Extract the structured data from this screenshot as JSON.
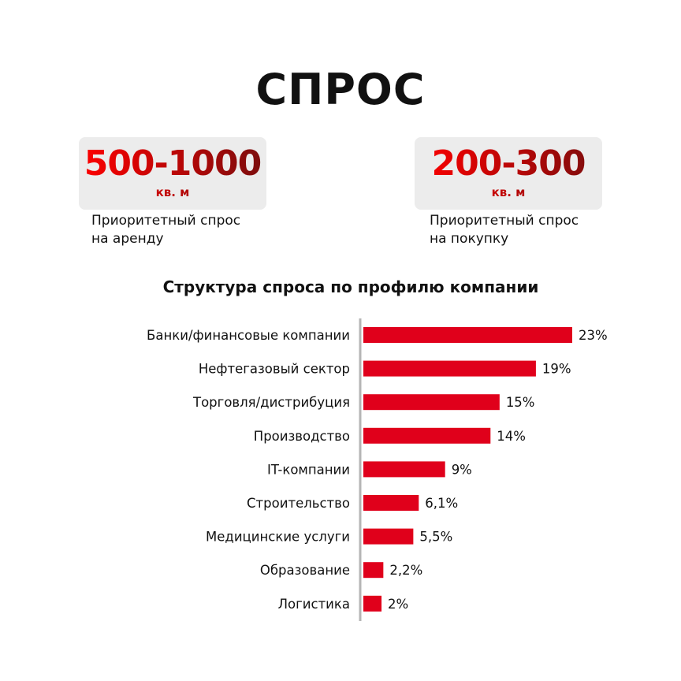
{
  "title": "СПРОС",
  "stats": [
    {
      "value": "500-1000",
      "unit": "кв. м",
      "caption": "Приоритетный спрос\nна аренду"
    },
    {
      "value": "200-300",
      "unit": "кв. м",
      "caption": "Приоритетный спрос\nна покупку"
    }
  ],
  "colors": {
    "bar": "#e0001b",
    "value_gradient_start": "#ff0000",
    "value_gradient_end": "#7a0d0d",
    "axis": "#b5b5b5",
    "box": "#ececec"
  },
  "chart_data": {
    "type": "bar",
    "orientation": "horizontal",
    "title": "Структура спроса по профилю компании",
    "categories": [
      "Банки/финансовые компании",
      "Нефтегазовый сектор",
      "Торговля/дистрибуция",
      "Производство",
      "IT-компании",
      "Строительство",
      "Медицинские услуги",
      "Образование",
      "Логистика"
    ],
    "values": [
      23,
      19,
      15,
      14,
      9,
      6.1,
      5.5,
      2.2,
      2
    ],
    "value_labels": [
      "23%",
      "19%",
      "15%",
      "14%",
      "9%",
      "6,1%",
      "5,5%",
      "2,2%",
      "2%"
    ],
    "unit": "%",
    "xlim": [
      0,
      23
    ],
    "grid": false,
    "legend": "none"
  }
}
